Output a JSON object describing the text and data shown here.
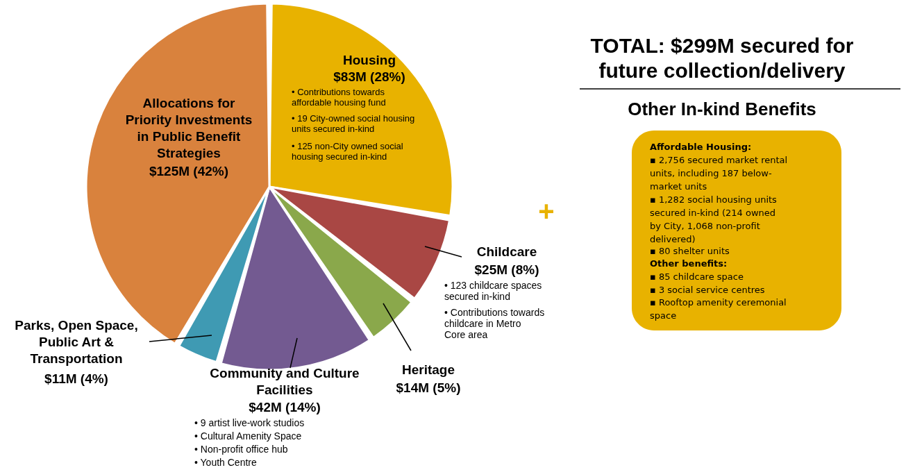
{
  "chart_data": {
    "type": "pie",
    "title": "TOTAL: $299M secured for\nfuture collection/delivery",
    "subtitle": "Other In-kind Benefits",
    "categories": [
      "Housing",
      "Childcare",
      "Heritage",
      "Community and Culture\nFacilities",
      "Parks, Open Space,\nPublic Art &\nTransportation",
      "Allocations for\nPriority Investments\nin Public Benefit\nStrategies"
    ],
    "values": [
      28,
      8,
      5,
      14,
      4,
      42
    ],
    "colors": [
      "#e8b200",
      "#a94744",
      "#8aa84b",
      "#735a91",
      "#3f9ab3",
      "#d9823d"
    ],
    "value_labels": [
      "$83M (28%)",
      "$25M (8%)",
      "$14M (5%)",
      "$42M (14%)",
      "$11M (4%)",
      "$125M (42%)"
    ],
    "annotations": [
      "•   Contributions towards\n     affordable housing fund",
      "•   19 City-owned social housing\n     units secured in-kind",
      "•   125 non-City owned social\n     housing secured in-kind",
      "•   123 childcare spaces\n     secured in-kind",
      "•   Contributions towards\n     childcare in Metro\n     Core area",
      "•   9 artist live-work studios",
      "•   Cultural Amenity Space",
      "•   Non-profit office hub",
      "•   Youth Centre",
      "+",
      "Affordable Housing:",
      "▪   2,756 secured market rental\n     units, including 187 below-\n     market units",
      "▪   1,282 social housing units\n     secured in-kind (214 owned\n     by City, 1,068 non-profit\n     delivered)",
      "▪   80 shelter units",
      "Other benefits:",
      "▪   85 childcare space",
      "▪   3 social service centres",
      "▪   Rooftop amenity ceremonial\n     space"
    ]
  }
}
